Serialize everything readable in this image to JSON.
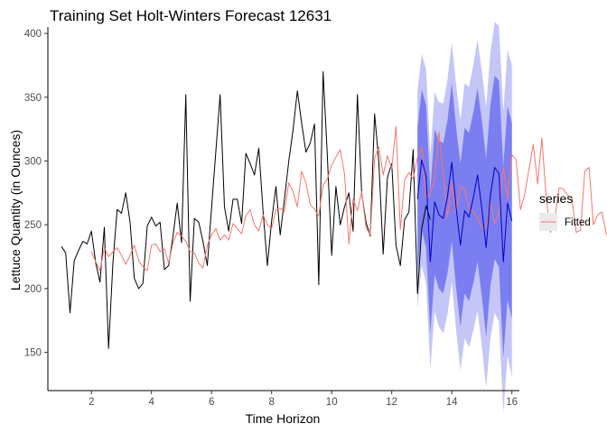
{
  "chart_data": {
    "type": "line",
    "title": "Training Set Holt-Winters Forecast 12631",
    "xlabel": "Time Horizon",
    "ylabel": "Lettuce Quantity (in Ounces)",
    "xlim": [
      0.55,
      16.25
    ],
    "ylim": [
      120,
      405
    ],
    "x_ticks": [
      2,
      4,
      6,
      8,
      10,
      12,
      14,
      16
    ],
    "y_ticks": [
      150,
      200,
      250,
      300,
      350,
      400
    ],
    "grid": false,
    "legend": {
      "title": "series",
      "position": "right",
      "entries": [
        {
          "label": "Fitted",
          "color": "#f8766d"
        }
      ]
    },
    "colors": {
      "actual": "#000000",
      "fitted": "#f8766d",
      "forecast": "#0000cc",
      "band80": "#7b7ef0",
      "band95": "#c4c6f7"
    },
    "series": [
      {
        "key": "actual",
        "x_start": 1.0,
        "x_step": 0.142857,
        "values": [
          233,
          228,
          181,
          222,
          230,
          237,
          235,
          245,
          220,
          205,
          248,
          153,
          220,
          262,
          259,
          275,
          252,
          208,
          200,
          204,
          249,
          256,
          249,
          252,
          215,
          218,
          241,
          267,
          236,
          352,
          190,
          255,
          252,
          237,
          218,
          263,
          308,
          352,
          264,
          245,
          270,
          270,
          251,
          306,
          298,
          289,
          310,
          261,
          218,
          253,
          280,
          242,
          270,
          300,
          324,
          355,
          330,
          307,
          314,
          329,
          203,
          370,
          304,
          226,
          280,
          250,
          264,
          275,
          245,
          352,
          275,
          252,
          241,
          337,
          299,
          227,
          287,
          298,
          234,
          218,
          254,
          260,
          309,
          196,
          247,
          265,
          254
        ]
      },
      {
        "key": "fitted",
        "x_start": 2.0,
        "x_step": 0.142857,
        "values": [
          229,
          221,
          214,
          232,
          225,
          229,
          232,
          226,
          219,
          226,
          234,
          222,
          217,
          214,
          234,
          235,
          229,
          231,
          220,
          236,
          244,
          241,
          237,
          229,
          228,
          220,
          216,
          234,
          242,
          247,
          238,
          242,
          238,
          251,
          247,
          243,
          257,
          262,
          250,
          245,
          258,
          250,
          247,
          262,
          263,
          260,
          283,
          276,
          264,
          292,
          283,
          266,
          262,
          257,
          281,
          286,
          297,
          303,
          309,
          290,
          235,
          270,
          261,
          276,
          248,
          242,
          302,
          311,
          289,
          304,
          294,
          327,
          246,
          285,
          291,
          286,
          303,
          311,
          271,
          274,
          286,
          323,
          290,
          256,
          283,
          260,
          280,
          278,
          262,
          261,
          255,
          248,
          247,
          268,
          251,
          260,
          295,
          270,
          305,
          301,
          262,
          274,
          294,
          313,
          282,
          318,
          271,
          244,
          255,
          279,
          278,
          273,
          271,
          244,
          246,
          292,
          295,
          250,
          258,
          260,
          243,
          239,
          258,
          273,
          279,
          245,
          232,
          260
        ]
      },
      {
        "key": "forecast",
        "x_start": 12.857,
        "x_step": 0.142857,
        "values": [
          270,
          301,
          288,
          221,
          268,
          258,
          255,
          272,
          299,
          264,
          234,
          261,
          256,
          271,
          289,
          263,
          232,
          273,
          295,
          290,
          221,
          267,
          253
        ]
      }
    ],
    "intervals": [
      {
        "key": "band95",
        "x_start": 12.857,
        "x_step": 0.142857,
        "lower": [
          185,
          218,
          204,
          137,
          182,
          170,
          165,
          180,
          205,
          168,
          136,
          161,
          154,
          167,
          183,
          155,
          122,
          161,
          181,
          174,
          103,
          147,
          131
        ],
        "upper": [
          355,
          384,
          372,
          305,
          354,
          346,
          345,
          364,
          393,
          360,
          332,
          361,
          358,
          375,
          395,
          371,
          342,
          385,
          409,
          406,
          339,
          387,
          375
        ]
      },
      {
        "key": "band80",
        "x_start": 12.857,
        "x_step": 0.142857,
        "lower": [
          214,
          246,
          232,
          165,
          211,
          200,
          196,
          212,
          237,
          201,
          170,
          196,
          190,
          204,
          221,
          194,
          162,
          202,
          223,
          217,
          146,
          191,
          176
        ],
        "upper": [
          326,
          356,
          344,
          277,
          325,
          316,
          314,
          332,
          361,
          327,
          298,
          326,
          322,
          338,
          357,
          332,
          302,
          344,
          367,
          363,
          296,
          343,
          330
        ]
      }
    ]
  }
}
